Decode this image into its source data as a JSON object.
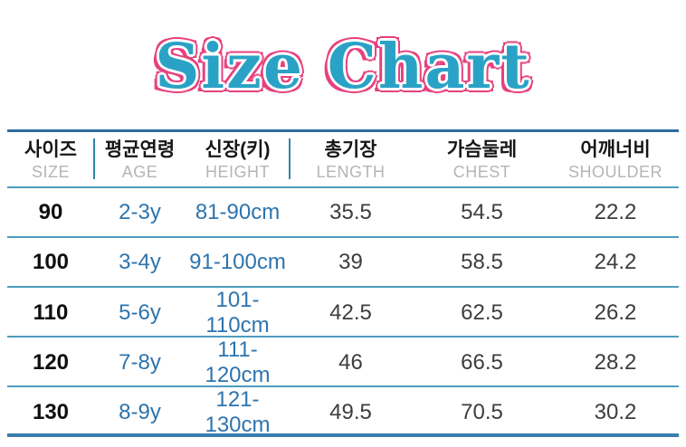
{
  "title": "Size Chart",
  "colors": {
    "title_fill": "#2aa2c6",
    "title_outline": "#e6417f",
    "border_top": "#2c6d9e",
    "border_bottom": "#3a7cab",
    "line_teal": "#4e9cbe",
    "divider_teal": "#2e86ab",
    "accent_blue": "#2d74ae"
  },
  "chart_data": {
    "type": "table",
    "title": "Size Chart",
    "columns_ko": [
      "사이즈",
      "평균연령",
      "신장(키)",
      "총기장",
      "가슴둘레",
      "어깨너비"
    ],
    "columns_en": [
      "SIZE",
      "AGE",
      "HEIGHT",
      "LENGTH",
      "CHEST",
      "SHOULDER"
    ],
    "rows": [
      [
        "90",
        "2-3y",
        "81-90cm",
        "35.5",
        "54.5",
        "22.2"
      ],
      [
        "100",
        "3-4y",
        "91-100cm",
        "39",
        "58.5",
        "24.2"
      ],
      [
        "110",
        "5-6y",
        "101-110cm",
        "42.5",
        "62.5",
        "26.2"
      ],
      [
        "120",
        "7-8y",
        "111-120cm",
        "46",
        "66.5",
        "28.2"
      ],
      [
        "130",
        "8-9y",
        "121-130cm",
        "49.5",
        "70.5",
        "30.2"
      ]
    ]
  }
}
